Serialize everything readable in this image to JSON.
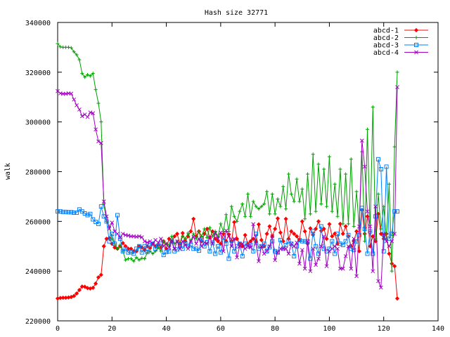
{
  "chart_data": {
    "type": "line",
    "title": "Hash size 32771",
    "xlabel": "",
    "ylabel": "walk",
    "xlim": [
      0,
      140
    ],
    "ylim": [
      220000,
      340000
    ],
    "x_ticks": [
      "0",
      "20",
      "40",
      "60",
      "80",
      "100",
      "120",
      "140"
    ],
    "y_ticks": [
      "220000",
      "240000",
      "260000",
      "280000",
      "300000",
      "320000",
      "340000"
    ],
    "legend_position": "top-right",
    "grid": false,
    "series": [
      {
        "name": "abcd-1",
        "color": "#ff0000",
        "marker": "diamond",
        "x": [
          0,
          1,
          2,
          3,
          4,
          5,
          6,
          7,
          8,
          9,
          10,
          11,
          12,
          13,
          14,
          15,
          16,
          17,
          18,
          19,
          20,
          21,
          22,
          23,
          24,
          25,
          26,
          27,
          28,
          29,
          30,
          31,
          32,
          33,
          34,
          35,
          36,
          37,
          38,
          39,
          40,
          41,
          42,
          43,
          44,
          45,
          46,
          47,
          48,
          49,
          50,
          51,
          52,
          53,
          54,
          55,
          56,
          57,
          58,
          59,
          60,
          61,
          62,
          63,
          64,
          65,
          66,
          67,
          68,
          69,
          70,
          71,
          72,
          73,
          74,
          75,
          76,
          77,
          78,
          79,
          80,
          81,
          82,
          83,
          84,
          85,
          86,
          87,
          88,
          89,
          90,
          91,
          92,
          93,
          94,
          95,
          96,
          97,
          98,
          99,
          100,
          101,
          102,
          103,
          104,
          105,
          106,
          107,
          108,
          109,
          110,
          111,
          112,
          113,
          114,
          115,
          116,
          117,
          118,
          119,
          120,
          121,
          122,
          123,
          124,
          125
        ],
        "y": [
          229000,
          229200,
          229300,
          229300,
          229400,
          229600,
          230000,
          231000,
          232400,
          233800,
          233700,
          233200,
          233000,
          233300,
          235000,
          237500,
          238500,
          250000,
          253000,
          253300,
          251000,
          249500,
          249000,
          250000,
          251300,
          250000,
          249000,
          249000,
          248000,
          248000,
          250000,
          249500,
          248500,
          250000,
          249300,
          251000,
          250000,
          250400,
          249500,
          252000,
          249000,
          253000,
          252000,
          254000,
          255000,
          251000,
          255300,
          252000,
          254000,
          256000,
          261000,
          254000,
          256000,
          252000,
          255000,
          257000,
          253500,
          256000,
          253000,
          252000,
          251000,
          255000,
          252000,
          254800,
          252000,
          259700,
          253000,
          251000,
          250000,
          254500,
          251000,
          252000,
          253000,
          252000,
          258800,
          252500,
          250000,
          255000,
          258000,
          254000,
          257000,
          261200,
          255500,
          252000,
          261000,
          253000,
          256000,
          255000,
          254000,
          252500,
          260000,
          256000,
          251000,
          257200,
          254600,
          257000,
          260000,
          256200,
          257000,
          253000,
          258900,
          254000,
          255100,
          251000,
          259000,
          255000,
          258000,
          254000,
          250000,
          252000,
          256000,
          248000,
          264600,
          255000,
          262000,
          250000,
          254000,
          252000,
          263000,
          255000,
          253000,
          255000,
          247000,
          243000,
          242000,
          229000
        ]
      },
      {
        "name": "abcd-2",
        "color": "#00a000",
        "marker": "plus",
        "x": [
          0,
          1,
          2,
          3,
          4,
          5,
          6,
          7,
          8,
          9,
          10,
          11,
          12,
          13,
          14,
          15,
          16,
          17,
          18,
          19,
          20,
          21,
          22,
          23,
          24,
          25,
          26,
          27,
          28,
          29,
          30,
          31,
          32,
          33,
          34,
          35,
          36,
          37,
          38,
          39,
          40,
          41,
          42,
          43,
          44,
          45,
          46,
          47,
          48,
          49,
          50,
          51,
          52,
          53,
          54,
          55,
          56,
          57,
          58,
          59,
          60,
          61,
          62,
          63,
          64,
          65,
          66,
          67,
          68,
          69,
          70,
          71,
          72,
          73,
          74,
          75,
          76,
          77,
          78,
          79,
          80,
          81,
          82,
          83,
          84,
          85,
          86,
          87,
          88,
          89,
          90,
          91,
          92,
          93,
          94,
          95,
          96,
          97,
          98,
          99,
          100,
          101,
          102,
          103,
          104,
          105,
          106,
          107,
          108,
          109,
          110,
          111,
          112,
          113,
          114,
          115,
          116,
          117,
          118,
          119,
          120,
          121,
          122,
          123,
          124,
          125
        ],
        "y": [
          331500,
          330200,
          330000,
          330000,
          330000,
          329800,
          328200,
          327000,
          325000,
          319500,
          318000,
          319000,
          318500,
          319500,
          313000,
          307500,
          300000,
          267000,
          260000,
          258000,
          253000,
          251000,
          249000,
          250500,
          248000,
          244500,
          245000,
          245000,
          244000,
          245500,
          244500,
          245200,
          245000,
          247500,
          248000,
          247000,
          248000,
          249500,
          248000,
          252000,
          251000,
          250500,
          254000,
          251000,
          252000,
          251000,
          254000,
          253000,
          255300,
          252000,
          255000,
          253000,
          256000,
          254000,
          257000,
          253500,
          257500,
          254000,
          256000,
          254000,
          259000,
          256000,
          262700,
          256000,
          266000,
          262000,
          260000,
          264000,
          267000,
          262000,
          271000,
          262000,
          268000,
          266000,
          265000,
          266000,
          267000,
          272000,
          263000,
          271000,
          263000,
          269000,
          266000,
          274000,
          265000,
          279000,
          271000,
          268000,
          277000,
          268000,
          273000,
          261000,
          279000,
          263000,
          287000,
          264000,
          283000,
          267000,
          281000,
          266000,
          286000,
          264000,
          275000,
          262000,
          281000,
          259000,
          279000,
          259000,
          285000,
          258000,
          272000,
          257000,
          288000,
          252000,
          297000,
          256000,
          306000,
          253000,
          271000,
          257000,
          266000,
          253000,
          275000,
          240000,
          290000,
          320000
        ]
      },
      {
        "name": "abcd-3",
        "color": "#0080ff",
        "marker": "square",
        "x": [
          0,
          1,
          2,
          3,
          4,
          5,
          6,
          7,
          8,
          9,
          10,
          11,
          12,
          13,
          14,
          15,
          16,
          17,
          18,
          19,
          20,
          21,
          22,
          23,
          24,
          25,
          26,
          27,
          28,
          29,
          30,
          31,
          32,
          33,
          34,
          35,
          36,
          37,
          38,
          39,
          40,
          41,
          42,
          43,
          44,
          45,
          46,
          47,
          48,
          49,
          50,
          51,
          52,
          53,
          54,
          55,
          56,
          57,
          58,
          59,
          60,
          61,
          62,
          63,
          64,
          65,
          66,
          67,
          68,
          69,
          70,
          71,
          72,
          73,
          74,
          75,
          76,
          77,
          78,
          79,
          80,
          81,
          82,
          83,
          84,
          85,
          86,
          87,
          88,
          89,
          90,
          91,
          92,
          93,
          94,
          95,
          96,
          97,
          98,
          99,
          100,
          101,
          102,
          103,
          104,
          105,
          106,
          107,
          108,
          109,
          110,
          111,
          112,
          113,
          114,
          115,
          116,
          117,
          118,
          119,
          120,
          121,
          122,
          123,
          124,
          125
        ],
        "y": [
          264000,
          264000,
          263800,
          263800,
          263700,
          263700,
          263500,
          263500,
          264800,
          264000,
          263200,
          262500,
          263000,
          260800,
          259800,
          259000,
          266000,
          262000,
          260000,
          252000,
          255000,
          251000,
          262500,
          253000,
          248000,
          249000,
          247500,
          247600,
          247000,
          249000,
          250000,
          247500,
          250000,
          247700,
          250500,
          251000,
          249000,
          250000,
          251000,
          246500,
          247700,
          248000,
          252000,
          248000,
          248700,
          250500,
          249000,
          251000,
          250000,
          250500,
          249000,
          249000,
          248200,
          253000,
          250000,
          251600,
          248000,
          251500,
          247000,
          250000,
          247500,
          253500,
          251000,
          245000,
          252400,
          248000,
          250000,
          251000,
          246000,
          251000,
          250000,
          250600,
          248000,
          255000,
          249000,
          250000,
          251000,
          248000,
          249600,
          252000,
          248000,
          247500,
          252500,
          249000,
          250500,
          252000,
          251000,
          246000,
          250000,
          252500,
          252000,
          252000,
          252000,
          245000,
          256000,
          250000,
          247000,
          258000,
          249000,
          248000,
          249000,
          252000,
          247000,
          255000,
          251000,
          250500,
          252000,
          254500,
          249000,
          248500,
          252000,
          254500,
          265400,
          257000,
          247000,
          256000,
          247000,
          262000,
          285000,
          281000,
          248000,
          282000,
          253000,
          255000,
          264000,
          264000
        ]
      },
      {
        "name": "abcd-4",
        "color": "#a000c0",
        "marker": "cross",
        "x": [
          0,
          1,
          2,
          3,
          4,
          5,
          6,
          7,
          8,
          9,
          10,
          11,
          12,
          13,
          14,
          15,
          16,
          17,
          18,
          19,
          20,
          21,
          22,
          23,
          24,
          25,
          26,
          27,
          28,
          29,
          30,
          31,
          32,
          33,
          34,
          35,
          36,
          37,
          38,
          39,
          40,
          41,
          42,
          43,
          44,
          45,
          46,
          47,
          48,
          49,
          50,
          51,
          52,
          53,
          54,
          55,
          56,
          57,
          58,
          59,
          60,
          61,
          62,
          63,
          64,
          65,
          66,
          67,
          68,
          69,
          70,
          71,
          72,
          73,
          74,
          75,
          76,
          77,
          78,
          79,
          80,
          81,
          82,
          83,
          84,
          85,
          86,
          87,
          88,
          89,
          90,
          91,
          92,
          93,
          94,
          95,
          96,
          97,
          98,
          99,
          100,
          101,
          102,
          103,
          104,
          105,
          106,
          107,
          108,
          109,
          110,
          111,
          112,
          113,
          114,
          115,
          116,
          117,
          118,
          119,
          120,
          121,
          122,
          123,
          124,
          125
        ],
        "y": [
          312400,
          311500,
          311300,
          311300,
          311500,
          311400,
          309000,
          306700,
          305000,
          302300,
          303000,
          302000,
          303800,
          303500,
          297000,
          292200,
          291500,
          268000,
          262000,
          257000,
          259500,
          256000,
          255000,
          253500,
          255000,
          254500,
          254300,
          254000,
          254000,
          253800,
          254000,
          253600,
          252000,
          251500,
          252000,
          251000,
          252500,
          251500,
          253000,
          250000,
          251000,
          249500,
          252000,
          249000,
          252000,
          249000,
          252000,
          250500,
          249000,
          252000,
          253800,
          251000,
          253000,
          250000,
          251500,
          251000,
          253500,
          251000,
          255200,
          253000,
          255500,
          248000,
          256300,
          254000,
          250000,
          253000,
          245500,
          250000,
          251000,
          249000,
          250000,
          249500,
          258900,
          251000,
          244000,
          250000,
          247000,
          248000,
          250000,
          254000,
          244400,
          247500,
          249000,
          249000,
          249000,
          247000,
          251000,
          250000,
          251500,
          243000,
          248500,
          241000,
          252000,
          240000,
          249000,
          242500,
          245000,
          250000,
          254000,
          242000,
          248000,
          249000,
          250000,
          249000,
          241000,
          241000,
          246000,
          250000,
          241000,
          253000,
          238000,
          258000,
          292500,
          282000,
          264000,
          258000,
          240000,
          266000,
          236000,
          233400,
          255000,
          252000,
          250000,
          252000,
          255000,
          314000
        ]
      }
    ]
  }
}
